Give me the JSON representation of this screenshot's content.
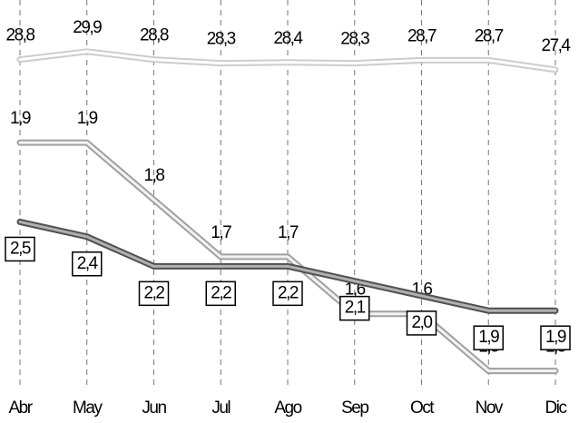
{
  "chart_data": {
    "type": "line",
    "categories": [
      "Abr",
      "May",
      "Jun",
      "Jul",
      "Ago",
      "Sep",
      "Oct",
      "Nov",
      "Dic"
    ],
    "series": [
      {
        "color": "#cccccc",
        "inner_color": "#ffffff",
        "ylim": [
          -18,
          37
        ],
        "label_position": "above",
        "label_box": false,
        "values": [
          28.8,
          29.9,
          28.8,
          28.3,
          28.4,
          28.3,
          28.7,
          28.7,
          27.4
        ],
        "value_labels": [
          "28,8",
          "29,9",
          "28,8",
          "28,3",
          "28,4",
          "28,3",
          "28,7",
          "28,7",
          "27,4"
        ]
      },
      {
        "color": "#a0a0a0",
        "inner_color": "#f2f2f2",
        "ylim": [
          1.45,
          2.15
        ],
        "label_position": "above",
        "label_box": false,
        "values": [
          1.9,
          1.9,
          1.8,
          1.7,
          1.7,
          1.6,
          1.6,
          1.5,
          1.5
        ],
        "value_labels": [
          "1,9",
          "1,9",
          "1,8",
          "1,7",
          "1,7",
          "1,6",
          "1,6",
          "1,5",
          "1,5"
        ]
      },
      {
        "color": "#505050",
        "inner_color": "#b0b0b0",
        "ylim": [
          1.3,
          4.0
        ],
        "label_position": "below",
        "label_box": true,
        "values": [
          2.5,
          2.4,
          2.2,
          2.2,
          2.2,
          2.1,
          2.0,
          1.9,
          1.9
        ],
        "value_labels": [
          "2,5",
          "2,4",
          "2,2",
          "2,2",
          "2,2",
          "2,1",
          "2,0",
          "1,9",
          "1,9"
        ]
      }
    ]
  }
}
